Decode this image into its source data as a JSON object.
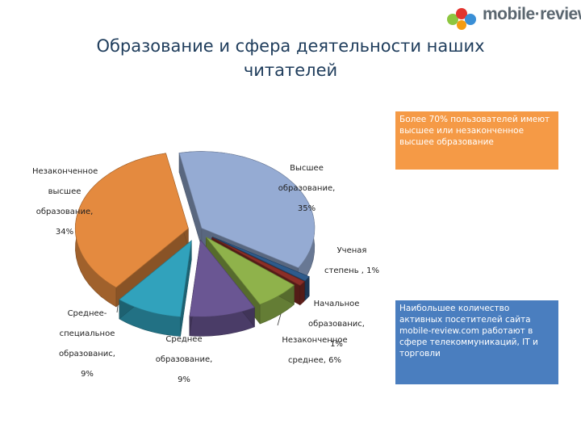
{
  "header": {
    "logo_text": "mobile·review",
    "logo_icon": "colored-circles-logo",
    "title_line1": "Образование и сфера деятельности наших",
    "title_line2": "читателей"
  },
  "chart_data": {
    "type": "pie",
    "style": "3d-exploded",
    "slices": [
      {
        "label": "Высшее образование, 35%",
        "value": 35,
        "color": "#95abd3"
      },
      {
        "label": "Ученая степень , 1%",
        "value": 1,
        "color": "#2e5b8c"
      },
      {
        "label": "Начальное образованис, 1%",
        "value": 1,
        "color": "#8b2e27"
      },
      {
        "label": "Незаконченное среднее, 6%",
        "value": 6,
        "color": "#8fb24b"
      },
      {
        "label": "Среднее образование, 9%",
        "value": 9,
        "color": "#6a5693"
      },
      {
        "label": "Среднее-специальное образованис, 9%",
        "value": 9,
        "color": "#31a2bc"
      },
      {
        "label": "Незаконченное высшее образование, 34%",
        "value": 34,
        "color": "#e48a3f"
      }
    ],
    "labels": {
      "higher": [
        "Высшее",
        "образование,",
        "35%"
      ],
      "degree": [
        "Ученая",
        "степень , 1%"
      ],
      "primary": [
        "Начальное",
        "образованис,",
        "1%"
      ],
      "incomplete_secondary": [
        "Незаконченное",
        "среднее, 6%"
      ],
      "secondary": [
        "Среднее",
        "образование,",
        "9%"
      ],
      "vocational": [
        "Среднее-",
        "специальное",
        "образованис,",
        "9%"
      ],
      "incomplete_higher": [
        "Незаконченное",
        "высшее",
        "образование,",
        "34%"
      ]
    }
  },
  "callouts": {
    "orange": "Более 70% пользователей имеют высшее или незаконченное высшее образование",
    "blue": "Наибольшее количество активных посетителей сайта mobile-review.com работают в сфере телекоммуникаций, IT и торговли",
    "orange_color": "#f59a46",
    "blue_color": "#4a7ebf"
  }
}
